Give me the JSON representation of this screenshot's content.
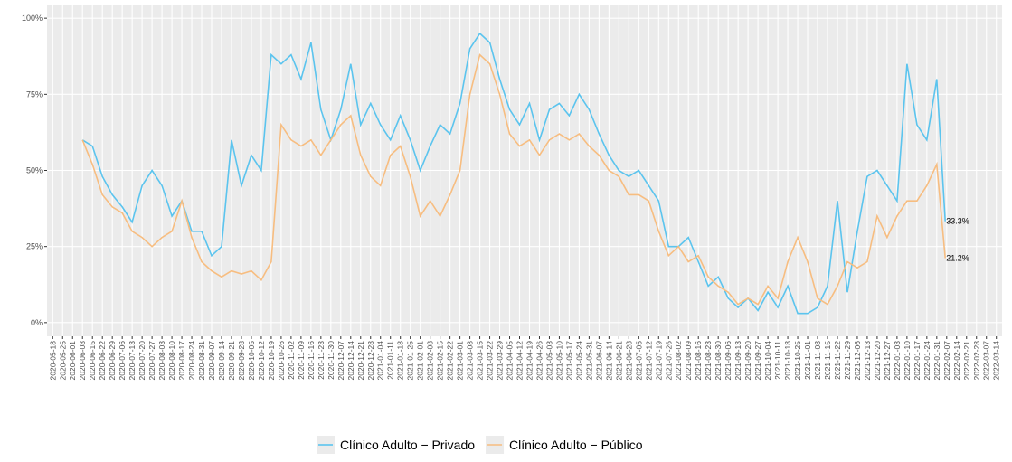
{
  "chart_data": {
    "type": "line",
    "x": [
      "2020-06-08",
      "2020-06-15",
      "2020-06-22",
      "2020-06-29",
      "2020-07-06",
      "2020-07-13",
      "2020-07-20",
      "2020-07-27",
      "2020-08-03",
      "2020-08-10",
      "2020-08-17",
      "2020-08-24",
      "2020-08-31",
      "2020-09-07",
      "2020-09-14",
      "2020-09-21",
      "2020-09-28",
      "2020-10-05",
      "2020-10-12",
      "2020-10-19",
      "2020-10-26",
      "2020-11-02",
      "2020-11-09",
      "2020-11-16",
      "2020-11-23",
      "2020-11-30",
      "2020-12-07",
      "2020-12-14",
      "2020-12-21",
      "2020-12-28",
      "2021-01-04",
      "2021-01-11",
      "2021-01-18",
      "2021-01-25",
      "2021-02-01",
      "2021-02-08",
      "2021-02-15",
      "2021-02-22",
      "2021-03-01",
      "2021-03-08",
      "2021-03-15",
      "2021-03-22",
      "2021-03-29",
      "2021-04-05",
      "2021-04-12",
      "2021-04-19",
      "2021-04-26",
      "2021-05-03",
      "2021-05-10",
      "2021-05-17",
      "2021-05-24",
      "2021-05-31",
      "2021-06-07",
      "2021-06-14",
      "2021-06-21",
      "2021-06-28",
      "2021-07-05",
      "2021-07-12",
      "2021-07-19",
      "2021-07-26",
      "2021-08-02",
      "2021-08-09",
      "2021-08-16",
      "2021-08-23",
      "2021-08-30",
      "2021-09-06",
      "2021-09-13",
      "2021-09-20",
      "2021-09-27",
      "2021-10-04",
      "2021-10-11",
      "2021-10-18",
      "2021-10-25",
      "2021-11-01",
      "2021-11-08",
      "2021-11-15",
      "2021-11-22",
      "2021-11-29",
      "2021-12-06",
      "2021-12-13",
      "2021-12-20",
      "2021-12-27",
      "2022-01-03",
      "2022-01-10",
      "2022-01-17",
      "2022-01-24",
      "2022-01-31",
      "2022-02-06"
    ],
    "series": [
      {
        "name": "Clínico Adulto − Privado",
        "color": "#5bc4ee",
        "values": [
          60,
          58,
          48,
          42,
          38,
          33,
          45,
          50,
          45,
          35,
          40,
          30,
          30,
          22,
          25,
          60,
          45,
          55,
          50,
          88,
          85,
          88,
          80,
          92,
          70,
          60,
          70,
          85,
          65,
          72,
          65,
          60,
          68,
          60,
          50,
          58,
          65,
          62,
          72,
          90,
          95,
          92,
          80,
          70,
          65,
          72,
          60,
          70,
          72,
          68,
          75,
          70,
          62,
          55,
          50,
          48,
          50,
          45,
          40,
          25,
          25,
          28,
          20,
          12,
          15,
          8,
          5,
          8,
          4,
          10,
          5,
          12,
          3,
          3,
          5,
          12,
          40,
          10,
          30,
          48,
          50,
          45,
          40,
          85,
          65,
          60,
          80,
          33.3
        ],
        "value_labels": [
          null,
          null,
          null,
          null,
          null,
          null,
          null,
          null,
          null,
          null,
          null,
          null,
          null,
          null,
          null,
          null,
          null,
          null,
          null,
          null,
          null,
          null,
          null,
          null,
          null,
          null,
          null,
          null,
          null,
          null,
          null,
          null,
          null,
          null,
          null,
          null,
          null,
          null,
          null,
          null,
          null,
          null,
          null,
          null,
          null,
          null,
          null,
          null,
          null,
          null,
          null,
          null,
          null,
          null,
          null,
          null,
          null,
          null,
          null,
          null,
          null,
          null,
          null,
          null,
          null,
          null,
          null,
          null,
          null,
          null,
          null,
          null,
          null,
          null,
          null,
          null,
          null,
          null,
          null,
          null,
          null,
          null,
          null,
          null,
          null,
          null,
          null,
          "33.3%"
        ]
      },
      {
        "name": "Clínico Adulto − Público",
        "color": "#f7bd80",
        "values": [
          60,
          52,
          42,
          38,
          36,
          30,
          28,
          25,
          28,
          30,
          40,
          28,
          20,
          17,
          15,
          17,
          16,
          17,
          14,
          20,
          65,
          60,
          58,
          60,
          55,
          60,
          65,
          68,
          55,
          48,
          45,
          55,
          58,
          48,
          35,
          40,
          35,
          42,
          50,
          75,
          88,
          85,
          75,
          62,
          58,
          60,
          55,
          60,
          62,
          60,
          62,
          58,
          55,
          50,
          48,
          42,
          42,
          40,
          30,
          22,
          25,
          20,
          22,
          15,
          12,
          10,
          6,
          8,
          6,
          12,
          8,
          20,
          28,
          20,
          8,
          6,
          12,
          20,
          18,
          20,
          35,
          28,
          35,
          40,
          40,
          45,
          52,
          21.2
        ],
        "value_labels": [
          null,
          null,
          null,
          null,
          null,
          null,
          null,
          null,
          null,
          null,
          null,
          null,
          null,
          null,
          null,
          null,
          null,
          null,
          null,
          null,
          null,
          null,
          null,
          null,
          null,
          null,
          null,
          null,
          null,
          null,
          null,
          null,
          null,
          null,
          null,
          null,
          null,
          null,
          null,
          null,
          null,
          null,
          null,
          null,
          null,
          null,
          null,
          null,
          null,
          null,
          null,
          null,
          null,
          null,
          null,
          null,
          null,
          null,
          null,
          null,
          null,
          null,
          null,
          null,
          null,
          null,
          null,
          null,
          null,
          null,
          null,
          null,
          null,
          null,
          null,
          null,
          null,
          null,
          null,
          null,
          null,
          null,
          null,
          null,
          null,
          null,
          null,
          "21.2%"
        ]
      }
    ],
    "xlim": [
      "2020-05-14",
      "2022-03-18"
    ],
    "xticks": [
      "2020-05-18",
      "2020-05-25",
      "2020-06-01",
      "2020-06-08",
      "2020-06-15",
      "2020-06-22",
      "2020-06-29",
      "2020-07-06",
      "2020-07-13",
      "2020-07-20",
      "2020-07-27",
      "2020-08-03",
      "2020-08-10",
      "2020-08-17",
      "2020-08-24",
      "2020-08-31",
      "2020-09-07",
      "2020-09-14",
      "2020-09-21",
      "2020-09-28",
      "2020-10-05",
      "2020-10-12",
      "2020-10-19",
      "2020-10-26",
      "2020-11-02",
      "2020-11-09",
      "2020-11-16",
      "2020-11-23",
      "2020-11-30",
      "2020-12-07",
      "2020-12-14",
      "2020-12-21",
      "2020-12-28",
      "2021-01-04",
      "2021-01-11",
      "2021-01-18",
      "2021-01-25",
      "2021-02-01",
      "2021-02-08",
      "2021-02-15",
      "2021-02-22",
      "2021-03-01",
      "2021-03-08",
      "2021-03-15",
      "2021-03-22",
      "2021-03-29",
      "2021-04-05",
      "2021-04-12",
      "2021-04-19",
      "2021-04-26",
      "2021-05-03",
      "2021-05-10",
      "2021-05-17",
      "2021-05-24",
      "2021-05-31",
      "2021-06-07",
      "2021-06-14",
      "2021-06-21",
      "2021-06-28",
      "2021-07-05",
      "2021-07-12",
      "2021-07-19",
      "2021-07-26",
      "2021-08-02",
      "2021-08-09",
      "2021-08-16",
      "2021-08-23",
      "2021-08-30",
      "2021-09-06",
      "2021-09-13",
      "2021-09-20",
      "2021-09-27",
      "2021-10-04",
      "2021-10-11",
      "2021-10-18",
      "2021-10-25",
      "2021-11-01",
      "2021-11-08",
      "2021-11-15",
      "2021-11-22",
      "2021-11-29",
      "2021-12-06",
      "2021-12-13",
      "2021-12-20",
      "2021-12-27",
      "2022-01-03",
      "2022-01-10",
      "2022-01-17",
      "2022-01-24",
      "2022-01-31",
      "2022-02-07",
      "2022-02-14",
      "2022-02-21",
      "2022-02-28",
      "2022-03-07",
      "2022-03-14"
    ],
    "ylim": [
      -4.5,
      104.5
    ],
    "yticks": [
      {
        "value": 0,
        "label": "0%"
      },
      {
        "value": 25,
        "label": "25%"
      },
      {
        "value": 50,
        "label": "50%"
      },
      {
        "value": 75,
        "label": "75%"
      },
      {
        "value": 100,
        "label": "100%"
      }
    ],
    "grid": true,
    "legend": "bottom"
  }
}
